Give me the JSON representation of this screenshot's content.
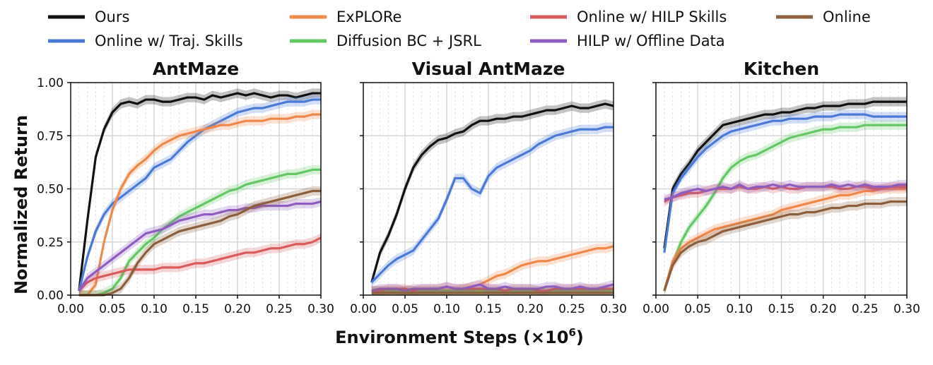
{
  "legend": [
    {
      "key": "ours",
      "label": "Ours",
      "color": "#111111"
    },
    {
      "key": "traj",
      "label": "Online w/ Traj. Skills",
      "color": "#4a7ad6"
    },
    {
      "key": "explore",
      "label": "ExPLORe",
      "color": "#f0874a"
    },
    {
      "key": "diff",
      "label": "Diffusion BC + JSRL",
      "color": "#62c764"
    },
    {
      "key": "hilp",
      "label": "Online w/ HILP Skills",
      "color": "#d95b5b"
    },
    {
      "key": "hilpoff",
      "label": "HILP w/ Offline Data",
      "color": "#8f5dbf"
    },
    {
      "key": "online",
      "label": "Online",
      "color": "#8c5e3c"
    }
  ],
  "ylabel": "Normalized Return",
  "xlabel": "Environment Steps (×10",
  "xlabel_sup": "6",
  "xlabel_close": ")",
  "chart_data": [
    {
      "type": "line",
      "title": "AntMaze",
      "xlim": [
        0.0,
        0.3
      ],
      "ylim": [
        0.0,
        1.0
      ],
      "xticks": [
        "0.00",
        "0.05",
        "0.10",
        "0.15",
        "0.20",
        "0.25",
        "0.30"
      ],
      "yticks": [
        "0.00",
        "0.25",
        "0.50",
        "0.75",
        "1.00"
      ],
      "x": [
        0.01,
        0.02,
        0.03,
        0.04,
        0.05,
        0.06,
        0.07,
        0.08,
        0.09,
        0.1,
        0.11,
        0.12,
        0.13,
        0.14,
        0.15,
        0.16,
        0.17,
        0.18,
        0.19,
        0.2,
        0.21,
        0.22,
        0.23,
        0.24,
        0.25,
        0.26,
        0.27,
        0.28,
        0.29,
        0.3
      ],
      "series": [
        {
          "key": "ours",
          "values": [
            0.02,
            0.35,
            0.65,
            0.78,
            0.86,
            0.9,
            0.91,
            0.9,
            0.92,
            0.92,
            0.91,
            0.91,
            0.92,
            0.93,
            0.93,
            0.92,
            0.94,
            0.93,
            0.94,
            0.95,
            0.94,
            0.95,
            0.94,
            0.93,
            0.94,
            0.94,
            0.93,
            0.94,
            0.95,
            0.95
          ]
        },
        {
          "key": "traj",
          "values": [
            0.02,
            0.18,
            0.3,
            0.38,
            0.43,
            0.46,
            0.49,
            0.52,
            0.55,
            0.6,
            0.62,
            0.64,
            0.68,
            0.72,
            0.75,
            0.78,
            0.8,
            0.82,
            0.84,
            0.86,
            0.87,
            0.88,
            0.88,
            0.89,
            0.9,
            0.91,
            0.91,
            0.91,
            0.92,
            0.92
          ]
        },
        {
          "key": "explore",
          "values": [
            0.0,
            0.0,
            0.05,
            0.25,
            0.4,
            0.5,
            0.57,
            0.61,
            0.64,
            0.68,
            0.71,
            0.73,
            0.75,
            0.76,
            0.77,
            0.78,
            0.79,
            0.8,
            0.8,
            0.81,
            0.82,
            0.82,
            0.82,
            0.83,
            0.83,
            0.83,
            0.84,
            0.84,
            0.85,
            0.85
          ]
        },
        {
          "key": "diff",
          "values": [
            0.0,
            0.0,
            0.0,
            0.01,
            0.03,
            0.08,
            0.16,
            0.2,
            0.24,
            0.27,
            0.31,
            0.34,
            0.37,
            0.39,
            0.41,
            0.43,
            0.45,
            0.47,
            0.49,
            0.5,
            0.52,
            0.53,
            0.54,
            0.55,
            0.56,
            0.57,
            0.57,
            0.58,
            0.59,
            0.59
          ]
        },
        {
          "key": "hilp",
          "values": [
            0.02,
            0.06,
            0.08,
            0.09,
            0.1,
            0.11,
            0.12,
            0.12,
            0.12,
            0.12,
            0.13,
            0.13,
            0.13,
            0.14,
            0.15,
            0.15,
            0.16,
            0.17,
            0.18,
            0.19,
            0.2,
            0.2,
            0.21,
            0.22,
            0.22,
            0.23,
            0.24,
            0.24,
            0.25,
            0.27
          ]
        },
        {
          "key": "hilpoff",
          "values": [
            0.02,
            0.08,
            0.11,
            0.14,
            0.17,
            0.2,
            0.23,
            0.26,
            0.29,
            0.3,
            0.31,
            0.33,
            0.35,
            0.36,
            0.37,
            0.38,
            0.38,
            0.39,
            0.4,
            0.4,
            0.41,
            0.41,
            0.42,
            0.42,
            0.42,
            0.42,
            0.43,
            0.43,
            0.43,
            0.44
          ]
        },
        {
          "key": "online",
          "values": [
            0.0,
            0.0,
            0.0,
            0.0,
            0.01,
            0.03,
            0.08,
            0.15,
            0.2,
            0.24,
            0.26,
            0.28,
            0.3,
            0.31,
            0.32,
            0.33,
            0.34,
            0.35,
            0.37,
            0.38,
            0.4,
            0.42,
            0.43,
            0.44,
            0.45,
            0.46,
            0.47,
            0.48,
            0.49,
            0.49
          ]
        }
      ]
    },
    {
      "type": "line",
      "title": "Visual AntMaze",
      "xlim": [
        0.0,
        0.3
      ],
      "ylim": [
        0.0,
        1.0
      ],
      "xticks": [
        "0.00",
        "0.05",
        "0.10",
        "0.15",
        "0.20",
        "0.25",
        "0.30"
      ],
      "yticks": [],
      "x": [
        0.01,
        0.02,
        0.03,
        0.04,
        0.05,
        0.06,
        0.07,
        0.08,
        0.09,
        0.1,
        0.11,
        0.12,
        0.13,
        0.14,
        0.15,
        0.16,
        0.17,
        0.18,
        0.19,
        0.2,
        0.21,
        0.22,
        0.23,
        0.24,
        0.25,
        0.26,
        0.27,
        0.28,
        0.29,
        0.3
      ],
      "series": [
        {
          "key": "ours",
          "values": [
            0.06,
            0.2,
            0.28,
            0.38,
            0.5,
            0.6,
            0.66,
            0.7,
            0.73,
            0.74,
            0.76,
            0.77,
            0.8,
            0.82,
            0.82,
            0.83,
            0.83,
            0.84,
            0.84,
            0.85,
            0.86,
            0.87,
            0.87,
            0.88,
            0.89,
            0.88,
            0.88,
            0.89,
            0.9,
            0.89
          ]
        },
        {
          "key": "traj",
          "values": [
            0.06,
            0.1,
            0.14,
            0.17,
            0.19,
            0.21,
            0.26,
            0.31,
            0.36,
            0.45,
            0.55,
            0.55,
            0.5,
            0.48,
            0.56,
            0.6,
            0.62,
            0.64,
            0.66,
            0.68,
            0.71,
            0.73,
            0.75,
            0.76,
            0.77,
            0.78,
            0.78,
            0.78,
            0.79,
            0.79
          ]
        },
        {
          "key": "explore",
          "values": [
            0.02,
            0.02,
            0.02,
            0.02,
            0.02,
            0.02,
            0.02,
            0.02,
            0.02,
            0.02,
            0.02,
            0.03,
            0.04,
            0.05,
            0.07,
            0.09,
            0.1,
            0.12,
            0.14,
            0.15,
            0.16,
            0.16,
            0.17,
            0.18,
            0.19,
            0.2,
            0.21,
            0.22,
            0.22,
            0.23
          ]
        },
        {
          "key": "diff",
          "values": [
            0.02,
            0.02,
            0.02,
            0.02,
            0.02,
            0.02,
            0.02,
            0.02,
            0.02,
            0.02,
            0.02,
            0.02,
            0.02,
            0.02,
            0.02,
            0.02,
            0.02,
            0.02,
            0.02,
            0.02,
            0.02,
            0.02,
            0.02,
            0.02,
            0.02,
            0.02,
            0.02,
            0.02,
            0.02,
            0.02
          ]
        },
        {
          "key": "hilp",
          "values": [
            0.02,
            0.02,
            0.03,
            0.03,
            0.03,
            0.02,
            0.03,
            0.03,
            0.03,
            0.04,
            0.03,
            0.03,
            0.03,
            0.03,
            0.03,
            0.03,
            0.02,
            0.03,
            0.03,
            0.03,
            0.02,
            0.02,
            0.03,
            0.03,
            0.03,
            0.03,
            0.03,
            0.03,
            0.03,
            0.03
          ]
        },
        {
          "key": "hilpoff",
          "values": [
            0.02,
            0.03,
            0.03,
            0.03,
            0.02,
            0.03,
            0.03,
            0.03,
            0.03,
            0.04,
            0.03,
            0.03,
            0.04,
            0.05,
            0.03,
            0.03,
            0.04,
            0.03,
            0.03,
            0.03,
            0.03,
            0.04,
            0.04,
            0.03,
            0.03,
            0.04,
            0.03,
            0.03,
            0.04,
            0.05
          ]
        },
        {
          "key": "online",
          "values": [
            0.01,
            0.01,
            0.01,
            0.01,
            0.01,
            0.01,
            0.01,
            0.01,
            0.01,
            0.01,
            0.01,
            0.01,
            0.01,
            0.01,
            0.01,
            0.01,
            0.01,
            0.01,
            0.01,
            0.01,
            0.01,
            0.01,
            0.01,
            0.01,
            0.01,
            0.01,
            0.01,
            0.01,
            0.01,
            0.01
          ]
        }
      ]
    },
    {
      "type": "line",
      "title": "Kitchen",
      "xlim": [
        0.0,
        0.3
      ],
      "ylim": [
        0.0,
        1.0
      ],
      "xticks": [
        "0.00",
        "0.05",
        "0.10",
        "0.15",
        "0.20",
        "0.25",
        "0.30"
      ],
      "yticks": [],
      "x": [
        0.01,
        0.02,
        0.03,
        0.04,
        0.05,
        0.06,
        0.07,
        0.08,
        0.09,
        0.1,
        0.11,
        0.12,
        0.13,
        0.14,
        0.15,
        0.16,
        0.17,
        0.18,
        0.19,
        0.2,
        0.21,
        0.22,
        0.23,
        0.24,
        0.25,
        0.26,
        0.27,
        0.28,
        0.29,
        0.3
      ],
      "series": [
        {
          "key": "ours",
          "values": [
            0.22,
            0.5,
            0.57,
            0.62,
            0.68,
            0.72,
            0.76,
            0.8,
            0.81,
            0.82,
            0.83,
            0.84,
            0.85,
            0.85,
            0.86,
            0.86,
            0.87,
            0.88,
            0.88,
            0.89,
            0.89,
            0.89,
            0.9,
            0.9,
            0.9,
            0.91,
            0.91,
            0.91,
            0.91,
            0.91
          ]
        },
        {
          "key": "traj",
          "values": [
            0.2,
            0.48,
            0.55,
            0.6,
            0.65,
            0.69,
            0.72,
            0.75,
            0.77,
            0.78,
            0.79,
            0.8,
            0.81,
            0.82,
            0.82,
            0.83,
            0.83,
            0.83,
            0.84,
            0.84,
            0.84,
            0.85,
            0.85,
            0.85,
            0.85,
            0.84,
            0.84,
            0.84,
            0.84,
            0.84
          ]
        },
        {
          "key": "diff",
          "values": [
            0.02,
            0.15,
            0.25,
            0.32,
            0.37,
            0.42,
            0.48,
            0.55,
            0.6,
            0.63,
            0.65,
            0.66,
            0.68,
            0.7,
            0.72,
            0.74,
            0.75,
            0.76,
            0.77,
            0.78,
            0.78,
            0.79,
            0.79,
            0.79,
            0.8,
            0.8,
            0.8,
            0.8,
            0.8,
            0.8
          ]
        },
        {
          "key": "explore",
          "values": [
            0.02,
            0.16,
            0.22,
            0.25,
            0.27,
            0.29,
            0.31,
            0.32,
            0.33,
            0.34,
            0.35,
            0.36,
            0.37,
            0.38,
            0.4,
            0.41,
            0.42,
            0.43,
            0.44,
            0.45,
            0.46,
            0.47,
            0.47,
            0.48,
            0.49,
            0.49,
            0.5,
            0.5,
            0.5,
            0.5
          ]
        },
        {
          "key": "hilp",
          "values": [
            0.44,
            0.46,
            0.47,
            0.48,
            0.48,
            0.49,
            0.5,
            0.5,
            0.5,
            0.51,
            0.5,
            0.5,
            0.51,
            0.5,
            0.51,
            0.5,
            0.5,
            0.51,
            0.51,
            0.51,
            0.51,
            0.5,
            0.5,
            0.51,
            0.51,
            0.5,
            0.5,
            0.51,
            0.51,
            0.51
          ]
        },
        {
          "key": "hilpoff",
          "values": [
            0.45,
            0.46,
            0.48,
            0.49,
            0.5,
            0.49,
            0.5,
            0.51,
            0.5,
            0.52,
            0.5,
            0.51,
            0.51,
            0.52,
            0.51,
            0.52,
            0.51,
            0.51,
            0.51,
            0.51,
            0.52,
            0.51,
            0.52,
            0.51,
            0.52,
            0.51,
            0.51,
            0.51,
            0.52,
            0.52
          ]
        },
        {
          "key": "online",
          "values": [
            0.02,
            0.14,
            0.2,
            0.23,
            0.25,
            0.26,
            0.28,
            0.3,
            0.31,
            0.32,
            0.33,
            0.34,
            0.35,
            0.36,
            0.37,
            0.38,
            0.38,
            0.39,
            0.39,
            0.4,
            0.41,
            0.41,
            0.42,
            0.42,
            0.43,
            0.43,
            0.43,
            0.44,
            0.44,
            0.44
          ]
        }
      ]
    }
  ]
}
